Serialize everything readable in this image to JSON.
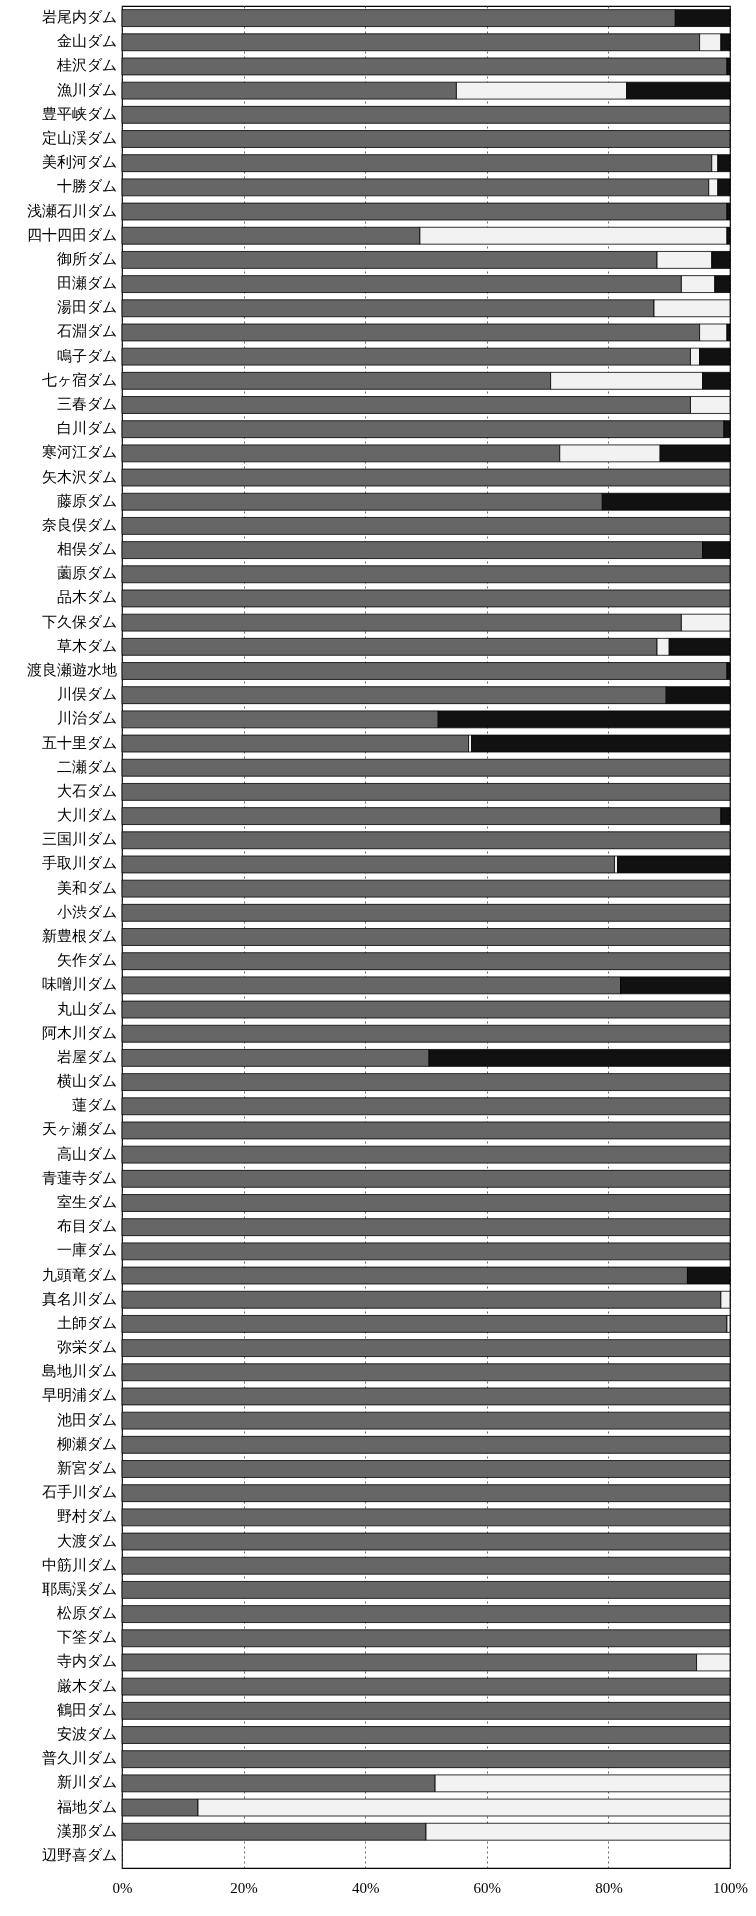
{
  "chart_data": {
    "type": "bar",
    "orientation": "horizontal",
    "stacked": true,
    "categories": [
      "岩尾内ダム",
      "金山ダム",
      "桂沢ダム",
      "漁川ダム",
      "豊平峡ダム",
      "定山渓ダム",
      "美利河ダム",
      "十勝ダム",
      "浅瀬石川ダム",
      "四十四田ダム",
      "御所ダム",
      "田瀬ダム",
      "湯田ダム",
      "石淵ダム",
      "鳴子ダム",
      "七ヶ宿ダム",
      "三春ダム",
      "白川ダム",
      "寒河江ダム",
      "矢木沢ダム",
      "藤原ダム",
      "奈良俣ダム",
      "相俣ダム",
      "薗原ダム",
      "品木ダム",
      "下久保ダム",
      "草木ダム",
      "渡良瀬遊水地",
      "川俣ダム",
      "川治ダム",
      "五十里ダム",
      "二瀬ダム",
      "大石ダム",
      "大川ダム",
      "三国川ダム",
      "手取川ダム",
      "美和ダム",
      "小渋ダム",
      "新豊根ダム",
      "矢作ダム",
      "味噌川ダム",
      "丸山ダム",
      "阿木川ダム",
      "岩屋ダム",
      "横山ダム",
      "蓮ダム",
      "天ヶ瀬ダム",
      "高山ダム",
      "青蓮寺ダム",
      "室生ダム",
      "布目ダム",
      "一庫ダム",
      "九頭竜ダム",
      "真名川ダム",
      "土師ダム",
      "弥栄ダム",
      "島地川ダム",
      "早明浦ダム",
      "池田ダム",
      "柳瀬ダム",
      "新宮ダム",
      "石手川ダム",
      "野村ダム",
      "大渡ダム",
      "中筋川ダム",
      "耶馬渓ダム",
      "松原ダム",
      "下筌ダム",
      "寺内ダム",
      "厳木ダム",
      "鶴田ダム",
      "安波ダム",
      "普久川ダム",
      "新川ダム",
      "福地ダム",
      "漢那ダム",
      "辺野喜ダム"
    ],
    "series": [
      {
        "color": "#666666",
        "values": [
          91,
          95,
          99.5,
          55,
          100,
          100,
          97,
          96.5,
          99.5,
          49,
          88,
          92,
          87.5,
          95,
          93.5,
          70.5,
          93.5,
          99,
          72,
          100,
          79,
          100,
          95.5,
          100,
          100,
          92,
          88,
          99.5,
          89.5,
          52,
          57,
          100,
          100,
          98.5,
          100,
          81,
          100,
          100,
          100,
          100,
          82,
          100,
          100,
          50.5,
          100,
          100,
          100,
          100,
          100,
          100,
          100,
          100,
          93,
          98.5,
          99.5,
          100,
          100,
          100,
          100,
          100,
          100,
          100,
          100,
          100,
          100,
          100,
          100,
          100,
          94.5,
          100,
          100,
          100,
          100,
          51.5,
          12.5,
          50,
          null
        ]
      },
      {
        "color": "#f2f2f2",
        "values": [
          null,
          3.5,
          null,
          28,
          null,
          null,
          1,
          1.5,
          null,
          50.5,
          9,
          5.5,
          12.5,
          4.5,
          1.5,
          25,
          6.5,
          null,
          16.5,
          null,
          null,
          null,
          null,
          null,
          null,
          8,
          2,
          null,
          null,
          null,
          0.5,
          null,
          null,
          null,
          null,
          0.5,
          null,
          null,
          null,
          null,
          null,
          null,
          null,
          null,
          null,
          null,
          null,
          null,
          null,
          null,
          null,
          null,
          null,
          1.5,
          0.5,
          null,
          null,
          null,
          null,
          null,
          null,
          null,
          null,
          null,
          null,
          null,
          null,
          null,
          5.5,
          null,
          null,
          null,
          null,
          48.5,
          87.5,
          50,
          null
        ]
      },
      {
        "color": "#111111",
        "values": [
          9,
          1.5,
          0.5,
          17,
          null,
          null,
          2,
          2,
          0.5,
          0.5,
          3,
          2.5,
          null,
          0.5,
          5,
          4.5,
          null,
          1,
          11.5,
          null,
          21,
          null,
          4.5,
          null,
          null,
          null,
          10,
          0.5,
          10.5,
          48,
          42.5,
          null,
          null,
          1.5,
          null,
          18.5,
          null,
          null,
          null,
          null,
          18,
          null,
          null,
          49.5,
          null,
          null,
          null,
          null,
          null,
          null,
          null,
          null,
          7,
          null,
          null,
          null,
          null,
          null,
          null,
          null,
          null,
          null,
          null,
          null,
          null,
          null,
          null,
          null,
          null,
          null,
          null,
          null,
          null,
          null,
          null,
          null,
          null
        ]
      }
    ],
    "xlim": [
      0,
      100
    ],
    "xticks": [
      {
        "value": 0,
        "label": "0%"
      },
      {
        "value": 20,
        "label": "20%"
      },
      {
        "value": 40,
        "label": "40%"
      },
      {
        "value": 60,
        "label": "60%"
      },
      {
        "value": 80,
        "label": "80%"
      },
      {
        "value": 100,
        "label": "100%"
      }
    ],
    "grid": "x"
  }
}
